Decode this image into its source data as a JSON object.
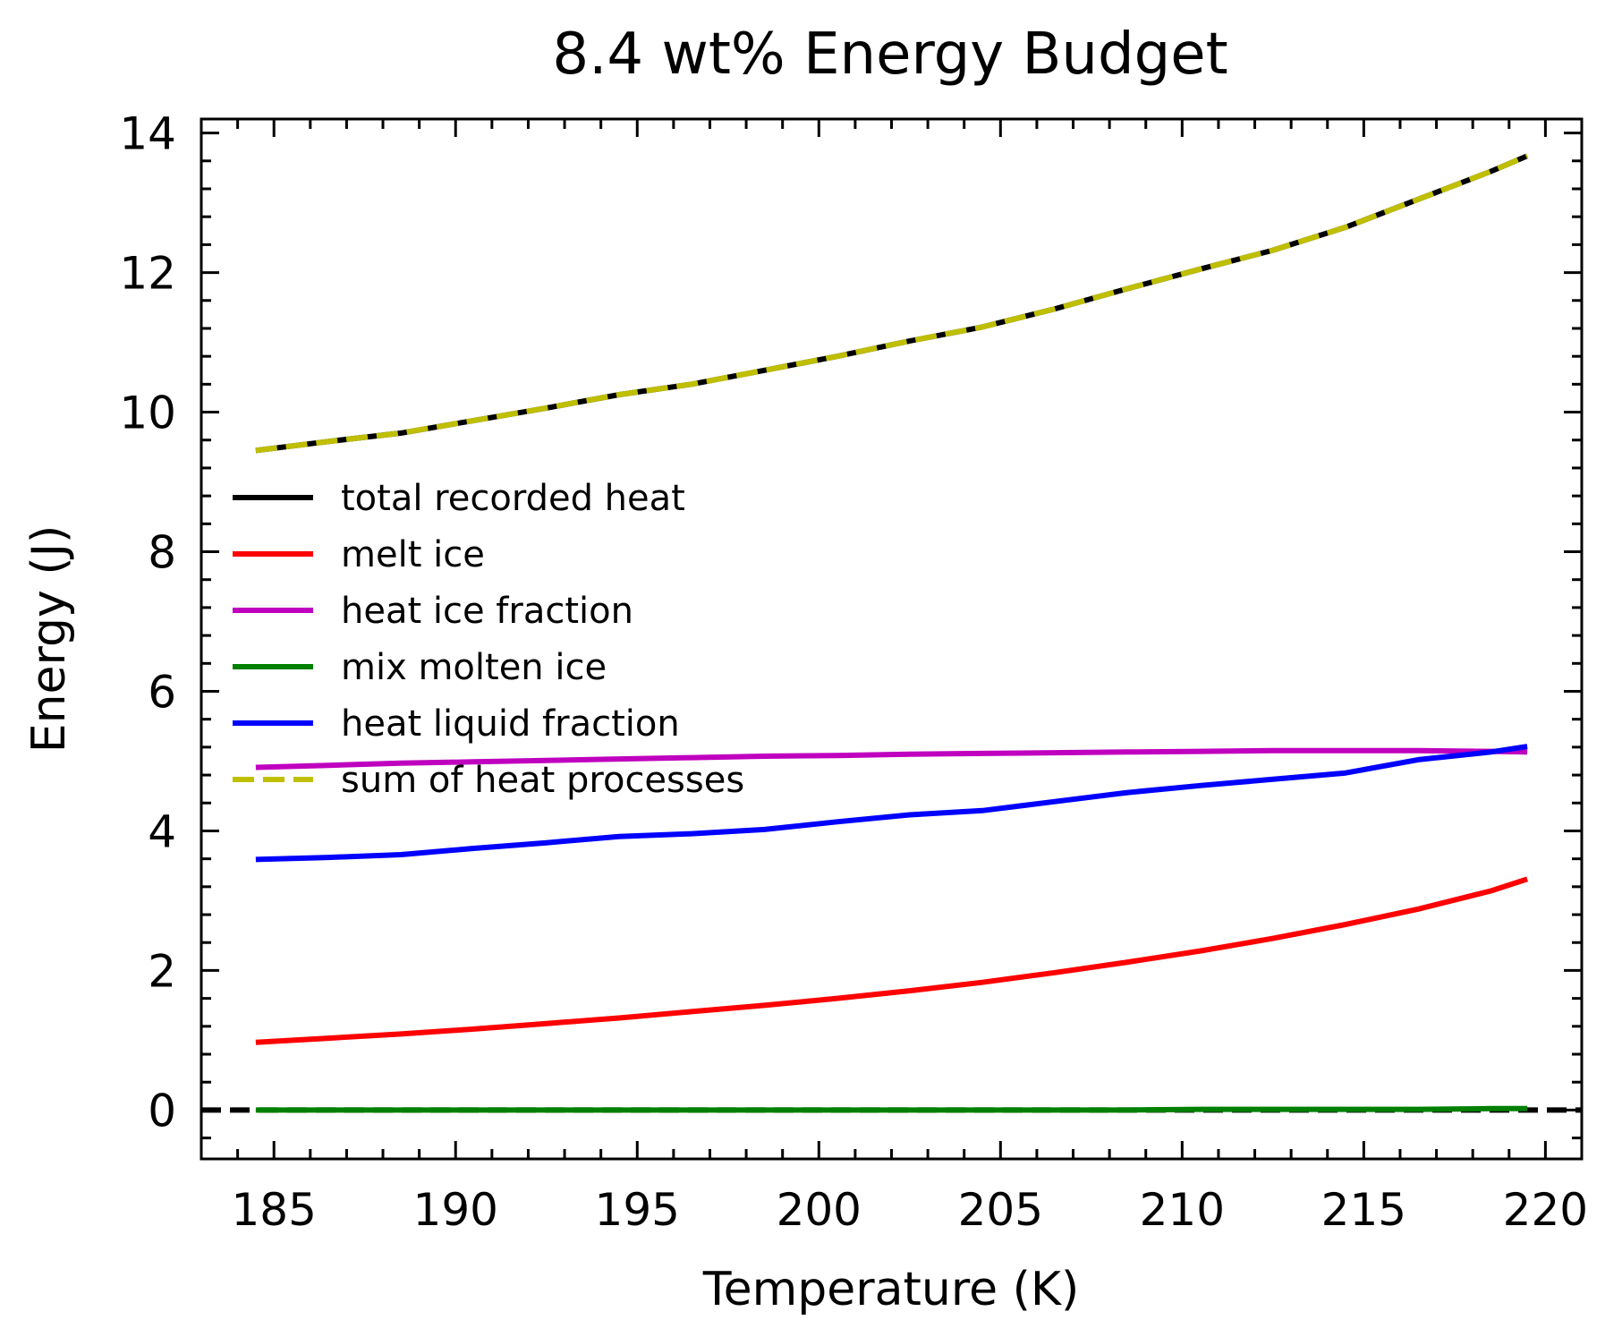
{
  "chart_data": {
    "type": "line",
    "title": "8.4 wt% Energy Budget",
    "xlabel": "Temperature (K)",
    "ylabel": "Energy (J)",
    "xlim": [
      183,
      221
    ],
    "ylim": [
      -0.7,
      14.2
    ],
    "xticks": [
      185,
      190,
      195,
      200,
      205,
      210,
      215,
      220
    ],
    "yticks": [
      0,
      2,
      4,
      6,
      8,
      10,
      12,
      14
    ],
    "grid": false,
    "legend_position": "center-left",
    "x": [
      184.5,
      186.5,
      188.5,
      190.5,
      192.5,
      194.5,
      196.5,
      198.5,
      200.5,
      202.5,
      204.5,
      206.5,
      208.5,
      210.5,
      212.5,
      214.5,
      216.5,
      218.5,
      219.5
    ],
    "series": [
      {
        "name": "total recorded heat",
        "color": "#000000",
        "dash": "solid",
        "values": [
          9.45,
          9.58,
          9.7,
          9.88,
          10.06,
          10.25,
          10.4,
          10.6,
          10.8,
          11.02,
          11.22,
          11.48,
          11.77,
          12.05,
          12.32,
          12.65,
          13.05,
          13.45,
          13.67
        ]
      },
      {
        "name": "melt ice",
        "color": "#ff0000",
        "dash": "solid",
        "values": [
          0.97,
          1.03,
          1.09,
          1.16,
          1.24,
          1.32,
          1.41,
          1.5,
          1.6,
          1.71,
          1.83,
          1.97,
          2.12,
          2.28,
          2.46,
          2.66,
          2.88,
          3.14,
          3.31
        ]
      },
      {
        "name": "heat ice fraction",
        "color": "#bf00bf",
        "dash": "solid",
        "values": [
          4.91,
          4.94,
          4.97,
          4.99,
          5.01,
          5.03,
          5.05,
          5.07,
          5.08,
          5.1,
          5.11,
          5.12,
          5.13,
          5.14,
          5.15,
          5.15,
          5.15,
          5.14,
          5.13
        ]
      },
      {
        "name": "mix molten ice",
        "color": "#008000",
        "dash": "solid",
        "values": [
          0.0,
          0.0,
          0.0,
          0.0,
          0.0,
          0.0,
          0.0,
          0.0,
          0.0,
          0.0,
          0.0,
          0.0,
          0.0,
          0.01,
          0.01,
          0.01,
          0.01,
          0.02,
          0.02
        ]
      },
      {
        "name": "heat liquid fraction",
        "color": "#0000ff",
        "dash": "solid",
        "values": [
          3.59,
          3.62,
          3.66,
          3.75,
          3.83,
          3.92,
          3.96,
          4.02,
          4.13,
          4.23,
          4.29,
          4.42,
          4.55,
          4.65,
          4.74,
          4.83,
          5.02,
          5.13,
          5.21
        ]
      },
      {
        "name": "sum of heat processes",
        "color": "#bfbf00",
        "dash": "dashed",
        "values": [
          9.45,
          9.58,
          9.7,
          9.88,
          10.06,
          10.25,
          10.4,
          10.6,
          10.8,
          11.02,
          11.22,
          11.48,
          11.77,
          12.05,
          12.32,
          12.65,
          13.05,
          13.45,
          13.67
        ]
      }
    ],
    "reference_lines": [
      {
        "y": 0,
        "color": "#000000",
        "dash": "dashed"
      }
    ]
  }
}
